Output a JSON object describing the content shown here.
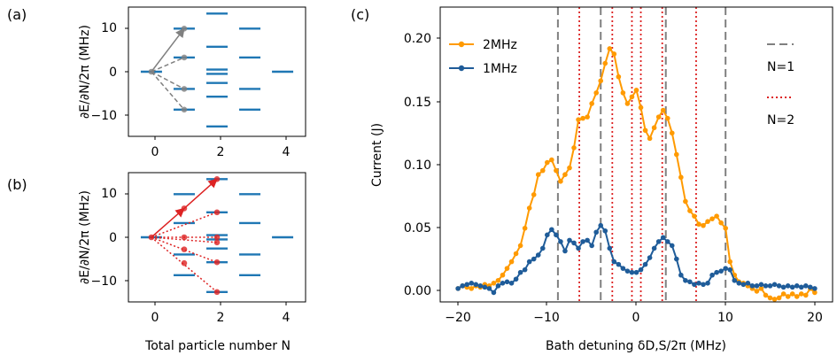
{
  "colors": {
    "level": "#1f77b4",
    "arrow_a": "#808080",
    "arrow_b": "#dd2222",
    "s2": "#ff9a00",
    "s1": "#1f5c99",
    "n1_line": "#808080",
    "n2_line": "#dd2222"
  },
  "chart_data": [
    {
      "panel": "(a)",
      "type": "scatter",
      "ylabel": "∂E/∂N/2π (MHz)",
      "xlabel": "",
      "xlim": [
        -0.7,
        4.7
      ],
      "ylim": [
        -15,
        15
      ],
      "xticks": [
        "0",
        "2",
        "4"
      ],
      "yticks": [
        "10",
        "0",
        "−10"
      ],
      "levels": [
        {
          "n": 0,
          "values": [
            0
          ]
        },
        {
          "n": 1,
          "values": [
            10,
            3.3,
            -4,
            -8.8
          ]
        },
        {
          "n": 2,
          "values": [
            13.5,
            5.8,
            0.5,
            -0.5,
            -2.6,
            -5.8,
            -12.7
          ]
        },
        {
          "n": 3,
          "values": [
            10,
            3.3,
            -4,
            -8.8
          ]
        },
        {
          "n": 4,
          "values": [
            0
          ]
        }
      ],
      "arrows": [
        {
          "from": [
            0,
            0
          ],
          "to": [
            1,
            10
          ],
          "style": "solid"
        },
        {
          "from": [
            0,
            0
          ],
          "to": [
            1,
            3.3
          ],
          "style": "dashed"
        },
        {
          "from": [
            0,
            0
          ],
          "to": [
            1,
            -4
          ],
          "style": "dashed"
        },
        {
          "from": [
            0,
            0
          ],
          "to": [
            1,
            -8.8
          ],
          "style": "dashed"
        }
      ]
    },
    {
      "panel": "(b)",
      "type": "scatter",
      "ylabel": "∂E/∂N/2π (MHz)",
      "xlabel": "Total particle number N",
      "xlim": [
        -0.7,
        4.7
      ],
      "ylim": [
        -15,
        15
      ],
      "xticks": [
        "0",
        "2",
        "4"
      ],
      "yticks": [
        "10",
        "0",
        "−10"
      ],
      "levels": [
        {
          "n": 0,
          "values": [
            0
          ]
        },
        {
          "n": 1,
          "values": [
            10,
            3.3,
            -4,
            -8.8
          ]
        },
        {
          "n": 2,
          "values": [
            13.5,
            5.8,
            0.5,
            -0.5,
            -2.6,
            -5.8,
            -12.7
          ]
        },
        {
          "n": 3,
          "values": [
            10,
            3.3,
            -4,
            -8.8
          ]
        },
        {
          "n": 4,
          "values": [
            0
          ]
        }
      ],
      "arrows": [
        {
          "from": [
            0,
            0
          ],
          "to": [
            1,
            6.7
          ],
          "style": "solid"
        },
        {
          "from": [
            1,
            6.7
          ],
          "to": [
            2,
            13.5
          ],
          "style": "solid"
        },
        {
          "from": [
            0,
            0
          ],
          "to": [
            2,
            5.8
          ],
          "style": "dotted"
        },
        {
          "from": [
            0,
            0
          ],
          "to": [
            2,
            0
          ],
          "style": "dotted"
        },
        {
          "from": [
            0,
            0
          ],
          "to": [
            2,
            -1.2
          ],
          "style": "dotted"
        },
        {
          "from": [
            0,
            0
          ],
          "to": [
            2,
            -5.8
          ],
          "style": "dotted"
        },
        {
          "from": [
            0,
            0
          ],
          "to": [
            2,
            -12.7
          ],
          "style": "dotted"
        }
      ],
      "dots": [
        [
          0,
          0
        ],
        [
          1,
          6.7
        ],
        [
          2,
          13.5
        ],
        [
          1,
          0
        ],
        [
          1,
          -2.8
        ],
        [
          1,
          -6
        ],
        [
          2,
          5.8
        ],
        [
          2,
          0
        ],
        [
          2,
          -1.2
        ],
        [
          2,
          -5.8
        ],
        [
          2,
          -12.7
        ]
      ]
    },
    {
      "panel": "(c)",
      "type": "line",
      "xlabel": "Bath detuning δD,S/2π (MHz)",
      "ylabel": "Current (J)",
      "xlim": [
        -22,
        22
      ],
      "ylim": [
        -0.01,
        0.21
      ],
      "xticks": [
        "−20",
        "−10",
        "0",
        "10",
        "20"
      ],
      "yticks": [
        "0.00",
        "0.05",
        "0.10",
        "0.15",
        "0.20"
      ],
      "n1_lines": [
        -8.8,
        -4,
        3.3,
        10
      ],
      "n2_lines": [
        -6.4,
        -2.7,
        -0.5,
        0.5,
        2.9,
        6.7
      ],
      "legend_lines": {
        "n1": "N=1",
        "n2": "N=2"
      },
      "series": [
        {
          "name": "2MHz",
          "x": [
            -20,
            -19.5,
            -19,
            -18.5,
            -18,
            -17.5,
            -17,
            -16.5,
            -16,
            -15.5,
            -15,
            -14.5,
            -14,
            -13.5,
            -13,
            -12.5,
            -12,
            -11.5,
            -11,
            -10.5,
            -10,
            -9.5,
            -9,
            -8.5,
            -8,
            -7.5,
            -7,
            -6.5,
            -6,
            -5.5,
            -5,
            -4.5,
            -4,
            -3.5,
            -3,
            -2.5,
            -2,
            -1.5,
            -1,
            -0.5,
            0,
            0.5,
            1,
            1.5,
            2,
            2.5,
            3,
            3.5,
            4,
            4.5,
            5,
            5.5,
            6,
            6.5,
            7,
            7.5,
            8,
            8.5,
            9,
            9.5,
            10,
            10.5,
            11,
            11.5,
            12,
            12.5,
            13,
            13.5,
            14,
            14.5,
            15,
            15.5,
            16,
            16.5,
            17,
            17.5,
            18,
            18.5,
            19,
            19.5,
            20
          ],
          "y": [
            0.0,
            0.002,
            0.001,
            0.0,
            0.002,
            0.001,
            0.003,
            0.002,
            0.004,
            0.006,
            0.01,
            0.015,
            0.02,
            0.026,
            0.032,
            0.045,
            0.06,
            0.07,
            0.085,
            0.088,
            0.094,
            0.096,
            0.088,
            0.08,
            0.085,
            0.09,
            0.105,
            0.126,
            0.127,
            0.128,
            0.138,
            0.146,
            0.155,
            0.168,
            0.179,
            0.175,
            0.158,
            0.146,
            0.138,
            0.143,
            0.148,
            0.135,
            0.118,
            0.112,
            0.12,
            0.128,
            0.133,
            0.127,
            0.116,
            0.1,
            0.083,
            0.065,
            0.058,
            0.054,
            0.048,
            0.047,
            0.05,
            0.052,
            0.054,
            0.049,
            0.045,
            0.02,
            0.01,
            0.005,
            0.004,
            0.002,
            0.0,
            -0.002,
            0.0,
            -0.005,
            -0.007,
            -0.008,
            -0.007,
            -0.004,
            -0.006,
            -0.004,
            -0.006,
            -0.004,
            -0.005,
            0.0,
            -0.003
          ]
        },
        {
          "name": "1MHz",
          "x": [
            -20,
            -19.5,
            -19,
            -18.5,
            -18,
            -17.5,
            -17,
            -16.5,
            -16,
            -15.5,
            -15,
            -14.5,
            -14,
            -13.5,
            -13,
            -12.5,
            -12,
            -11.5,
            -11,
            -10.5,
            -10,
            -9.5,
            -9,
            -8.5,
            -8,
            -7.5,
            -7,
            -6.5,
            -6,
            -5.5,
            -5,
            -4.5,
            -4,
            -3.5,
            -3,
            -2.5,
            -2,
            -1.5,
            -1,
            -0.5,
            0,
            0.5,
            1,
            1.5,
            2,
            2.5,
            3,
            3.5,
            4,
            4.5,
            5,
            5.5,
            6,
            6.5,
            7,
            7.5,
            8,
            8.5,
            9,
            9.5,
            10,
            10.5,
            11,
            11.5,
            12,
            12.5,
            13,
            13.5,
            14,
            14.5,
            15,
            15.5,
            16,
            16.5,
            17,
            17.5,
            18,
            18.5,
            19,
            19.5,
            20
          ],
          "y": [
            0.0,
            0.002,
            0.003,
            0.004,
            0.003,
            0.002,
            0.001,
            0.0,
            -0.003,
            0.002,
            0.004,
            0.005,
            0.004,
            0.007,
            0.012,
            0.014,
            0.02,
            0.022,
            0.025,
            0.03,
            0.04,
            0.044,
            0.04,
            0.035,
            0.028,
            0.036,
            0.034,
            0.03,
            0.035,
            0.036,
            0.032,
            0.042,
            0.047,
            0.043,
            0.03,
            0.02,
            0.018,
            0.015,
            0.013,
            0.012,
            0.012,
            0.014,
            0.018,
            0.023,
            0.03,
            0.035,
            0.038,
            0.035,
            0.032,
            0.022,
            0.01,
            0.006,
            0.005,
            0.003,
            0.004,
            0.003,
            0.004,
            0.01,
            0.012,
            0.013,
            0.015,
            0.014,
            0.006,
            0.004,
            0.003,
            0.004,
            0.002,
            0.002,
            0.003,
            0.002,
            0.002,
            0.003,
            0.002,
            0.001,
            0.002,
            0.001,
            0.002,
            0.001,
            0.002,
            0.001,
            0.0
          ]
        }
      ]
    }
  ]
}
